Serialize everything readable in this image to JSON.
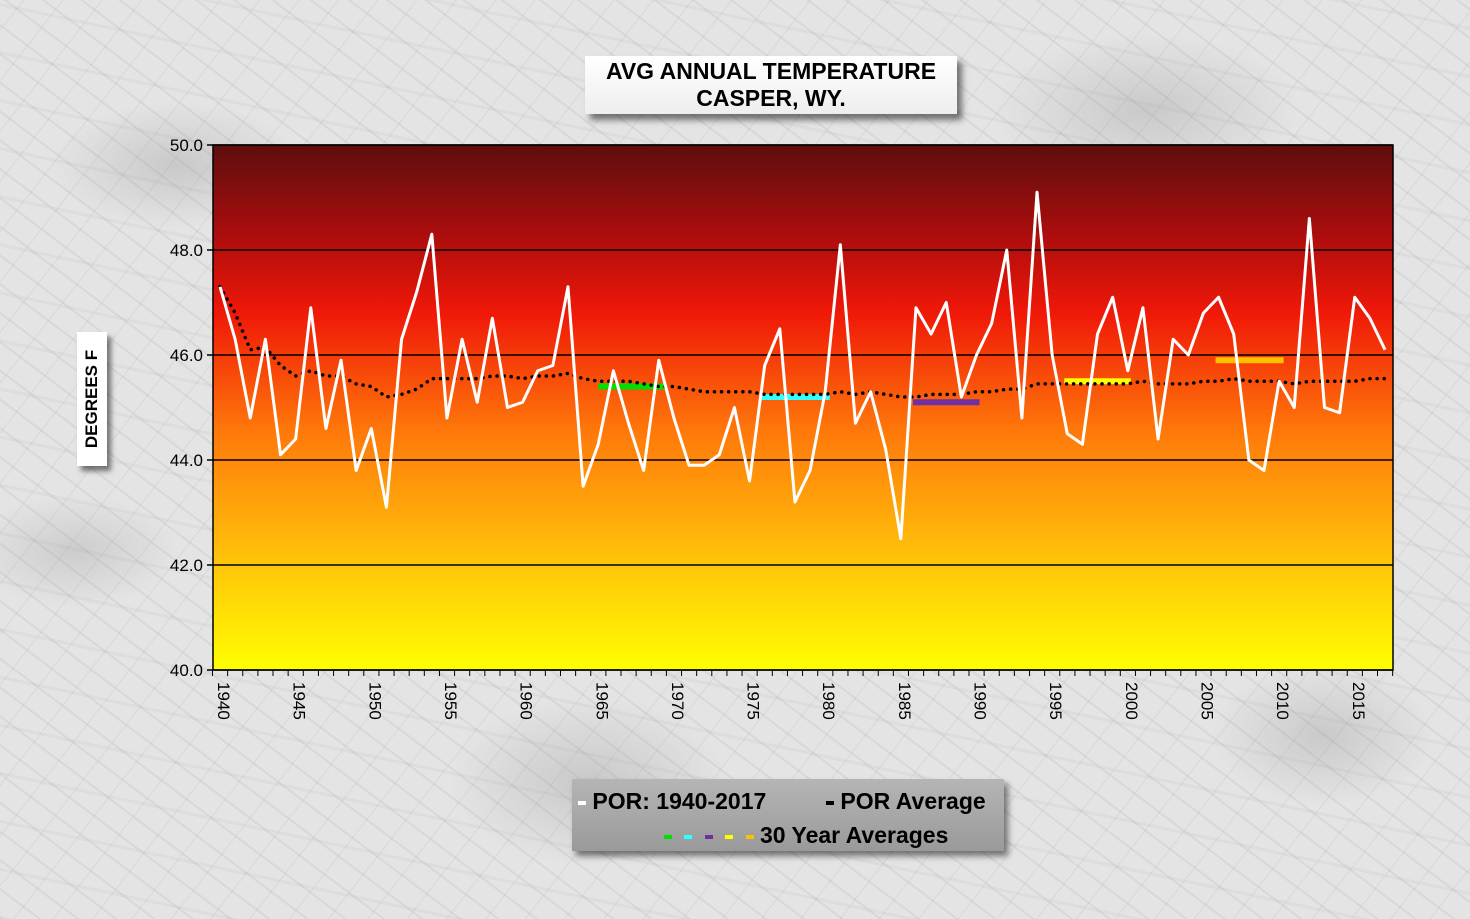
{
  "title": {
    "line1": "AVG ANNUAL  TEMPERATURE",
    "line2": "CASPER, WY."
  },
  "ylabel": "DEGREES F",
  "legend": {
    "por_label": "POR: 1940-2017",
    "por_avg_label": "POR Average",
    "thirty_year_label": "30 Year Averages"
  },
  "colors": {
    "series_line": "#ffffff",
    "por_average": "#000000",
    "avg_1961_1990": "#00e000",
    "avg_1971_2000": "#33ffff",
    "avg_1981_2010": "#7030a0",
    "avg_1991_2020": "#ffff00",
    "avg_2001_2030": "#ffc000"
  },
  "chart_data": {
    "type": "line",
    "ylim": [
      40.0,
      50.0
    ],
    "yticks": [
      "40.0",
      "42.0",
      "44.0",
      "46.0",
      "48.0",
      "50.0"
    ],
    "xticks": [
      "1940",
      "1945",
      "1950",
      "1955",
      "1960",
      "1965",
      "1970",
      "1975",
      "1980",
      "1985",
      "1990",
      "1995",
      "2000",
      "2005",
      "2010",
      "2015"
    ],
    "grid": true,
    "background": "gradient yellow (bottom) to dark red (top)",
    "series": [
      {
        "name": "POR: 1940-2017",
        "style": "solid white",
        "x": [
          1940,
          1941,
          1942,
          1943,
          1944,
          1945,
          1946,
          1947,
          1948,
          1949,
          1950,
          1951,
          1952,
          1953,
          1954,
          1955,
          1956,
          1957,
          1958,
          1959,
          1960,
          1961,
          1962,
          1963,
          1964,
          1965,
          1966,
          1967,
          1968,
          1969,
          1970,
          1971,
          1972,
          1973,
          1974,
          1975,
          1976,
          1977,
          1978,
          1979,
          1980,
          1981,
          1982,
          1983,
          1984,
          1985,
          1986,
          1987,
          1988,
          1989,
          1990,
          1991,
          1992,
          1993,
          1994,
          1995,
          1996,
          1997,
          1998,
          1999,
          2000,
          2001,
          2002,
          2003,
          2004,
          2005,
          2006,
          2007,
          2008,
          2009,
          2010,
          2011,
          2012,
          2013,
          2014,
          2015,
          2016,
          2017
        ],
        "y": [
          47.3,
          46.3,
          44.8,
          46.3,
          44.1,
          44.4,
          46.9,
          44.6,
          45.9,
          43.8,
          44.6,
          43.1,
          46.3,
          47.2,
          48.3,
          44.8,
          46.3,
          45.1,
          46.7,
          45.0,
          45.1,
          45.7,
          45.8,
          47.3,
          43.5,
          44.3,
          45.7,
          44.7,
          43.8,
          45.9,
          44.8,
          43.9,
          43.9,
          44.1,
          45.0,
          43.6,
          45.8,
          46.5,
          43.2,
          43.8,
          45.3,
          48.1,
          44.7,
          45.3,
          44.2,
          42.5,
          46.9,
          46.4,
          47.0,
          45.2,
          46.0,
          46.6,
          48.0,
          44.8,
          49.1,
          46.0,
          44.5,
          44.3,
          46.4,
          47.1,
          45.7,
          46.9,
          44.4,
          46.3,
          46.0,
          46.8,
          47.1,
          46.4,
          44.0,
          43.8,
          45.5,
          45.0,
          48.6,
          45.0,
          44.9,
          47.1,
          46.7,
          46.1
        ]
      },
      {
        "name": "POR Average",
        "style": "dotted black",
        "x": [
          1940,
          1941,
          1942,
          1943,
          1944,
          1945,
          1946,
          1947,
          1948,
          1949,
          1950,
          1951,
          1952,
          1953,
          1954,
          1955,
          1956,
          1957,
          1958,
          1959,
          1960,
          1961,
          1962,
          1963,
          1964,
          1965,
          1966,
          1967,
          1968,
          1969,
          1970,
          1971,
          1972,
          1973,
          1974,
          1975,
          1976,
          1977,
          1978,
          1979,
          1980,
          1981,
          1982,
          1983,
          1984,
          1985,
          1986,
          1987,
          1988,
          1989,
          1990,
          1991,
          1992,
          1993,
          1994,
          1995,
          1996,
          1997,
          1998,
          1999,
          2000,
          2001,
          2002,
          2003,
          2004,
          2005,
          2006,
          2007,
          2008,
          2009,
          2010,
          2011,
          2012,
          2013,
          2014,
          2015,
          2016,
          2017
        ],
        "y": [
          47.3,
          46.8,
          46.1,
          46.15,
          45.8,
          45.6,
          45.7,
          45.6,
          45.6,
          45.45,
          45.4,
          45.2,
          45.25,
          45.35,
          45.55,
          45.55,
          45.55,
          45.55,
          45.6,
          45.6,
          45.55,
          45.6,
          45.6,
          45.65,
          45.55,
          45.5,
          45.5,
          45.5,
          45.45,
          45.4,
          45.4,
          45.35,
          45.3,
          45.3,
          45.3,
          45.3,
          45.25,
          45.25,
          45.25,
          45.25,
          45.25,
          45.3,
          45.25,
          45.3,
          45.25,
          45.2,
          45.2,
          45.25,
          45.25,
          45.25,
          45.3,
          45.3,
          45.35,
          45.35,
          45.45,
          45.45,
          45.45,
          45.45,
          45.45,
          45.45,
          45.45,
          45.5,
          45.45,
          45.45,
          45.45,
          45.5,
          45.5,
          45.55,
          45.5,
          45.5,
          45.5,
          45.45,
          45.5,
          45.5,
          45.5,
          45.5,
          45.55,
          45.55
        ]
      }
    ],
    "thirty_year_averages": [
      {
        "x0": 1965,
        "x1": 1969.5,
        "y": 45.4,
        "color": "#00e000"
      },
      {
        "x0": 1975.8,
        "x1": 1980.3,
        "y": 45.2,
        "color": "#33ffff"
      },
      {
        "x0": 1985.8,
        "x1": 1990.2,
        "y": 45.1,
        "color": "#7030a0"
      },
      {
        "x0": 1995.8,
        "x1": 2000.2,
        "y": 45.5,
        "color": "#ffff00"
      },
      {
        "x0": 2005.8,
        "x1": 2010.3,
        "y": 45.9,
        "color": "#ffc000"
      }
    ]
  }
}
